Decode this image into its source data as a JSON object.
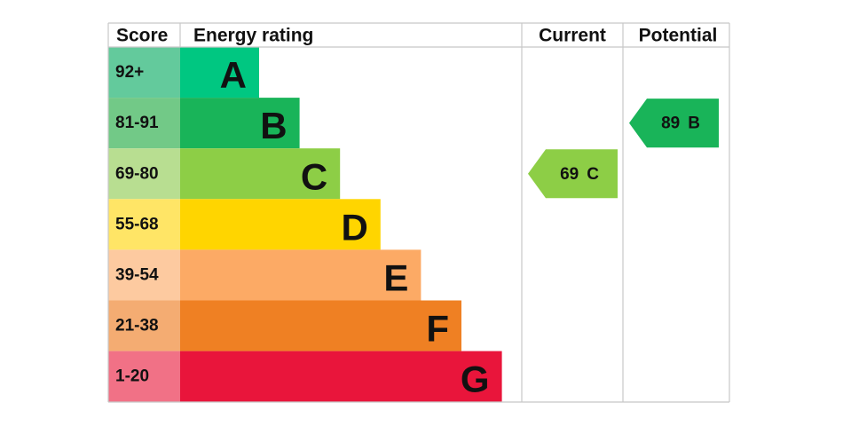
{
  "header": {
    "score": "Score",
    "rating": "Energy rating",
    "current": "Current",
    "potential": "Potential"
  },
  "bands": [
    {
      "score": "92+",
      "letter": "A",
      "color": "#00c781",
      "tint": "#63ca9c"
    },
    {
      "score": "81-91",
      "letter": "B",
      "color": "#19b459",
      "tint": "#72c987"
    },
    {
      "score": "69-80",
      "letter": "C",
      "color": "#8dce46",
      "tint": "#b8de91"
    },
    {
      "score": "55-68",
      "letter": "D",
      "color": "#ffd500",
      "tint": "#ffe566"
    },
    {
      "score": "39-54",
      "letter": "E",
      "color": "#fcaa65",
      "tint": "#fdcaa0"
    },
    {
      "score": "21-38",
      "letter": "F",
      "color": "#ef8023",
      "tint": "#f4ac72"
    },
    {
      "score": "1-20",
      "letter": "G",
      "color": "#e9153b",
      "tint": "#f17186"
    }
  ],
  "current": {
    "score": 69,
    "letter": "C"
  },
  "potential": {
    "score": 89,
    "letter": "B"
  }
}
